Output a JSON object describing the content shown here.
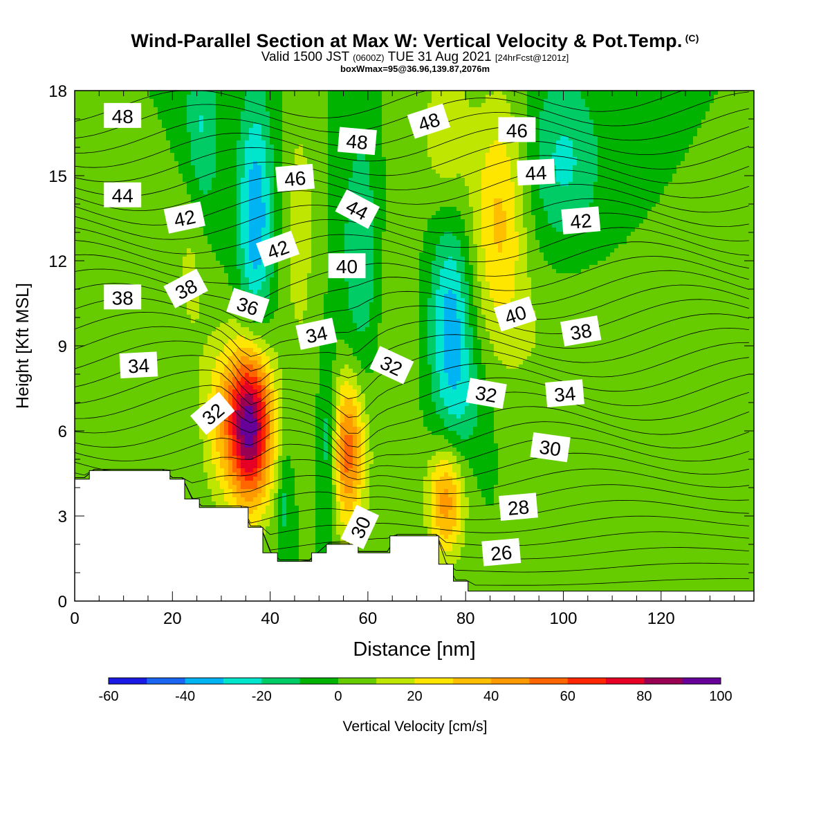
{
  "header": {
    "title": "Wind-Parallel Section at Max W: Vertical Velocity & Pot.Temp.",
    "copyright": "(C)",
    "valid_main": "Valid 1500 JST",
    "valid_utc": "(0600Z)",
    "valid_date": "TUE 31 Aug 2021",
    "forecast": "[24hrFcst@1201z]",
    "box_info": "boxWmax=95@36.96,139.87,2076m"
  },
  "chart_data": {
    "type": "heatmap",
    "xlabel": "Distance [nm]",
    "ylabel": "Height [Kft MSL]",
    "xlim": [
      0,
      139
    ],
    "ylim": [
      0,
      18
    ],
    "x_ticks": [
      0,
      20,
      40,
      60,
      80,
      100,
      120
    ],
    "y_ticks": [
      0,
      3,
      6,
      9,
      12,
      15,
      18
    ],
    "colorbar": {
      "label": "Vertical Velocity [cm/s]",
      "min": -60,
      "max": 100,
      "ticks": [
        -60,
        -40,
        -20,
        0,
        20,
        40,
        60,
        80,
        100
      ],
      "colors": [
        "#1a1ae6",
        "#1a66f2",
        "#00b3f2",
        "#00e6cc",
        "#00cc66",
        "#00b300",
        "#66cc00",
        "#bfe600",
        "#ffe600",
        "#ffbf00",
        "#ff9900",
        "#ff6600",
        "#ff2600",
        "#e60026",
        "#990052",
        "#660099"
      ]
    },
    "background_value": 0,
    "features": [
      {
        "x": 36,
        "y": 6.2,
        "sx": 3.2,
        "sy": 2.0,
        "w": 95
      },
      {
        "x": 56,
        "y": 5.3,
        "sx": 2.4,
        "sy": 1.9,
        "w": 55
      },
      {
        "x": 76,
        "y": 3.5,
        "sx": 2.6,
        "sy": 1.4,
        "w": 45
      },
      {
        "x": 30,
        "y": 6.5,
        "sx": 3.0,
        "sy": 2.0,
        "w": 25
      },
      {
        "x": 87,
        "y": 13.5,
        "sx": 4.0,
        "sy": 3.0,
        "w": 32
      },
      {
        "x": 76,
        "y": 16.5,
        "sx": 3.5,
        "sy": 2.0,
        "w": 18
      },
      {
        "x": 46,
        "y": 13.0,
        "sx": 2.5,
        "sy": 3.5,
        "w": 15
      },
      {
        "x": 24,
        "y": 12.0,
        "sx": 2.5,
        "sy": 2.5,
        "w": 14
      },
      {
        "x": 64,
        "y": 9.5,
        "sx": 4.0,
        "sy": 5.0,
        "w": 10
      },
      {
        "x": 100,
        "y": 9.0,
        "sx": 9.0,
        "sy": 2.0,
        "w": 10
      },
      {
        "x": 37,
        "y": 13.5,
        "sx": 2.5,
        "sy": 3.0,
        "w": -38
      },
      {
        "x": 77,
        "y": 9.8,
        "sx": 3.0,
        "sy": 2.5,
        "w": -35
      },
      {
        "x": 59,
        "y": 12.0,
        "sx": 3.0,
        "sy": 3.5,
        "w": -22
      },
      {
        "x": 26,
        "y": 16.5,
        "sx": 2.5,
        "sy": 2.5,
        "w": -22
      },
      {
        "x": 100,
        "y": 15.5,
        "sx": 5.5,
        "sy": 2.2,
        "w": -22
      },
      {
        "x": 52,
        "y": 5.5,
        "sx": 1.2,
        "sy": 2.0,
        "w": -22
      },
      {
        "x": 43,
        "y": 3.5,
        "sx": 1.0,
        "sy": 1.3,
        "w": -15
      },
      {
        "x": 80,
        "y": 7.0,
        "sx": 3.5,
        "sy": 1.5,
        "w": -12
      }
    ],
    "terrain": [
      [
        0,
        4.3
      ],
      [
        3,
        4.3
      ],
      [
        3,
        4.6
      ],
      [
        19.5,
        4.6
      ],
      [
        19.5,
        4.3
      ],
      [
        22.5,
        4.3
      ],
      [
        22.5,
        3.6
      ],
      [
        25.5,
        3.6
      ],
      [
        25.5,
        3.3
      ],
      [
        35.5,
        3.3
      ],
      [
        35.5,
        2.6
      ],
      [
        38.5,
        2.6
      ],
      [
        38.5,
        1.7
      ],
      [
        41.5,
        1.7
      ],
      [
        41.5,
        1.4
      ],
      [
        48.5,
        1.4
      ],
      [
        48.5,
        1.7
      ],
      [
        51.5,
        1.7
      ],
      [
        51.5,
        2.0
      ],
      [
        58,
        2.0
      ],
      [
        58,
        1.7
      ],
      [
        64.5,
        1.7
      ],
      [
        64.5,
        2.3
      ],
      [
        74.5,
        2.3
      ],
      [
        74.5,
        1.3
      ],
      [
        77.5,
        1.3
      ],
      [
        77.5,
        0.7
      ],
      [
        80.5,
        0.7
      ],
      [
        80.5,
        0.35
      ],
      [
        139,
        0.35
      ]
    ],
    "contour_labels": [
      {
        "text": "48",
        "x": 9.8,
        "y": 17.1,
        "angle": 0
      },
      {
        "text": "44",
        "x": 9.8,
        "y": 14.3,
        "angle": 0
      },
      {
        "text": "38",
        "x": 9.8,
        "y": 10.7,
        "angle": 0
      },
      {
        "text": "34",
        "x": 13.1,
        "y": 8.3,
        "angle": -3
      },
      {
        "text": "42",
        "x": 22.5,
        "y": 13.5,
        "angle": -12
      },
      {
        "text": "38",
        "x": 22.8,
        "y": 11.0,
        "angle": -28
      },
      {
        "text": "32",
        "x": 28.3,
        "y": 6.6,
        "angle": -40
      },
      {
        "text": "46",
        "x": 45.1,
        "y": 14.9,
        "angle": -5
      },
      {
        "text": "42",
        "x": 41.6,
        "y": 12.4,
        "angle": -20
      },
      {
        "text": "36",
        "x": 35.4,
        "y": 10.4,
        "angle": 18
      },
      {
        "text": "34",
        "x": 49.5,
        "y": 9.4,
        "angle": -12
      },
      {
        "text": "48",
        "x": 57.8,
        "y": 16.2,
        "angle": 5
      },
      {
        "text": "44",
        "x": 57.8,
        "y": 13.8,
        "angle": 28
      },
      {
        "text": "40",
        "x": 55.7,
        "y": 11.8,
        "angle": 0
      },
      {
        "text": "32",
        "x": 64.8,
        "y": 8.3,
        "angle": 25
      },
      {
        "text": "30",
        "x": 58.5,
        "y": 2.6,
        "angle": -65
      },
      {
        "text": "48",
        "x": 72.5,
        "y": 16.9,
        "angle": -18
      },
      {
        "text": "46",
        "x": 90.5,
        "y": 16.6,
        "angle": 0
      },
      {
        "text": "44",
        "x": 94.4,
        "y": 15.1,
        "angle": -3
      },
      {
        "text": "42",
        "x": 103.6,
        "y": 13.4,
        "angle": -5
      },
      {
        "text": "40",
        "x": 90.2,
        "y": 10.1,
        "angle": -18
      },
      {
        "text": "38",
        "x": 103.6,
        "y": 9.5,
        "angle": -10
      },
      {
        "text": "32",
        "x": 84.2,
        "y": 7.3,
        "angle": 10
      },
      {
        "text": "34",
        "x": 100.3,
        "y": 7.3,
        "angle": -5
      },
      {
        "text": "30",
        "x": 97.3,
        "y": 5.4,
        "angle": 8
      },
      {
        "text": "28",
        "x": 90.8,
        "y": 3.3,
        "angle": -5
      },
      {
        "text": "26",
        "x": 87.3,
        "y": 1.7,
        "angle": -5
      }
    ]
  }
}
